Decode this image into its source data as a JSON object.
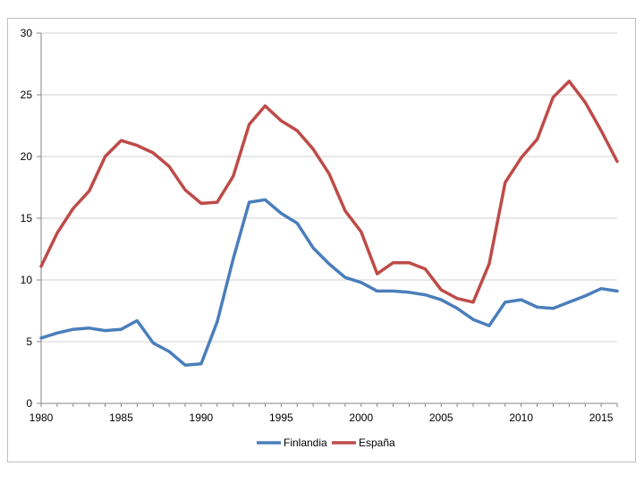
{
  "chart_data": {
    "type": "line",
    "title": "",
    "xlabel": "",
    "ylabel": "",
    "xlim": [
      1980,
      2016
    ],
    "ylim": [
      0,
      30
    ],
    "y_ticks": [
      0,
      5,
      10,
      15,
      20,
      25,
      30
    ],
    "x_ticks": [
      1980,
      1985,
      1990,
      1995,
      2000,
      2005,
      2010,
      2015
    ],
    "grid": "horizontal",
    "legend": "bottom",
    "x": [
      1980,
      1981,
      1982,
      1983,
      1984,
      1985,
      1986,
      1987,
      1988,
      1989,
      1990,
      1991,
      1992,
      1993,
      1994,
      1995,
      1996,
      1997,
      1998,
      1999,
      2000,
      2001,
      2002,
      2003,
      2004,
      2005,
      2006,
      2007,
      2008,
      2009,
      2010,
      2011,
      2012,
      2013,
      2014,
      2015,
      2016
    ],
    "series": [
      {
        "name": "Finlandia",
        "color": "#4a7ebb",
        "values": [
          5.3,
          5.7,
          6.0,
          6.1,
          5.9,
          6.0,
          6.7,
          4.9,
          4.2,
          3.1,
          3.2,
          6.6,
          11.7,
          16.3,
          16.5,
          15.4,
          14.6,
          12.6,
          11.3,
          10.2,
          9.8,
          9.1,
          9.1,
          9.0,
          8.8,
          8.4,
          7.7,
          6.8,
          6.3,
          8.2,
          8.4,
          7.8,
          7.7,
          8.2,
          8.7,
          9.3,
          9.1
        ]
      },
      {
        "name": "España",
        "color": "#be4b48",
        "values": [
          11.1,
          13.8,
          15.8,
          17.2,
          20.0,
          21.3,
          20.9,
          20.3,
          19.2,
          17.3,
          16.2,
          16.3,
          18.4,
          22.6,
          24.1,
          22.9,
          22.1,
          20.6,
          18.6,
          15.6,
          13.9,
          10.5,
          11.4,
          11.4,
          10.9,
          9.2,
          8.5,
          8.2,
          11.3,
          17.9,
          19.9,
          21.4,
          24.8,
          26.1,
          24.4,
          22.1,
          19.6
        ]
      }
    ]
  }
}
